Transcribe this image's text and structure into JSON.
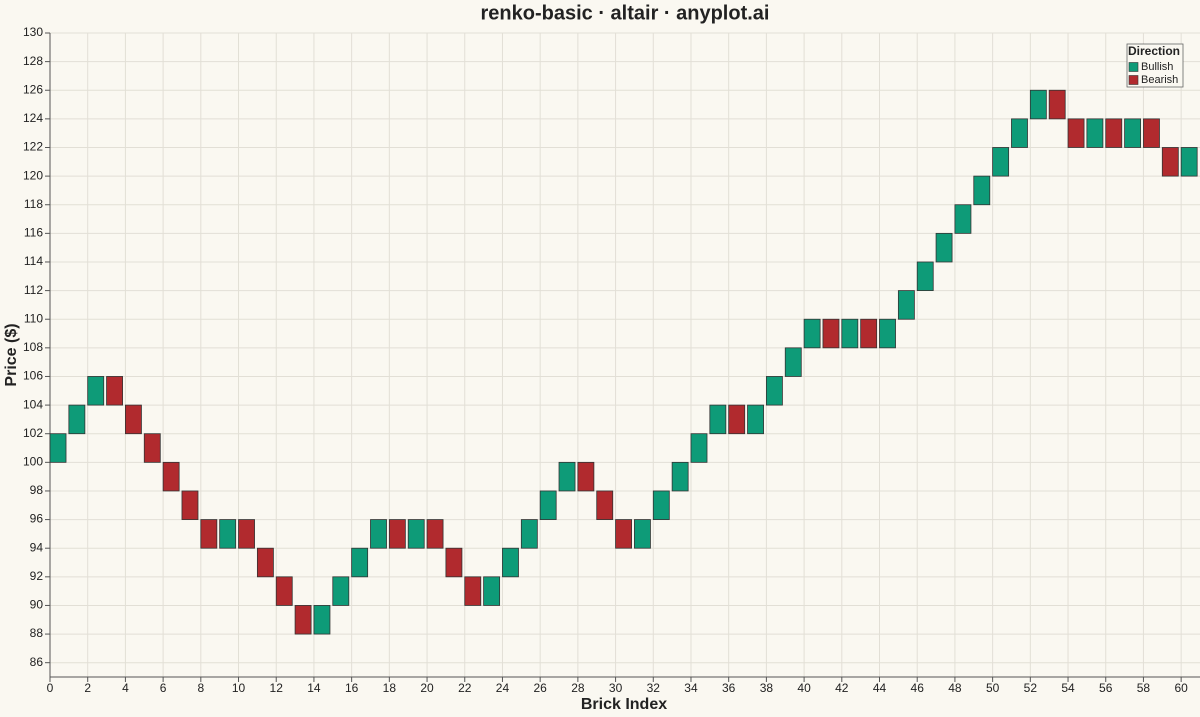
{
  "chart_data": {
    "type": "renko",
    "title": "renko-basic · altair · anyplot.ai",
    "x_label": "Brick Index",
    "y_label": "Price ($)",
    "xlim": [
      0,
      61
    ],
    "ylim": [
      85,
      130
    ],
    "xticks": [
      0,
      2,
      4,
      6,
      8,
      10,
      12,
      14,
      16,
      18,
      20,
      22,
      24,
      26,
      28,
      30,
      32,
      34,
      36,
      38,
      40,
      42,
      44,
      46,
      48,
      50,
      52,
      54,
      56,
      58,
      60
    ],
    "yticks": [
      86,
      88,
      90,
      92,
      94,
      96,
      98,
      100,
      102,
      104,
      106,
      108,
      110,
      112,
      114,
      116,
      118,
      120,
      122,
      124,
      126,
      128,
      130
    ],
    "grid": true,
    "legend_title": "Direction",
    "legend_position": "top-right",
    "series": [
      {
        "name": "Bullish",
        "color": "#0e9b78",
        "x": [
          0,
          1,
          2,
          9,
          14,
          15,
          16,
          17,
          19,
          23,
          24,
          25,
          26,
          27,
          31,
          32,
          33,
          34,
          35,
          37,
          38,
          39,
          40,
          42,
          44,
          45,
          46,
          47,
          48,
          49,
          50,
          51,
          52,
          55,
          57,
          60
        ],
        "low": [
          100,
          102,
          104,
          94,
          88,
          90,
          92,
          94,
          94,
          90,
          92,
          94,
          96,
          98,
          94,
          96,
          98,
          100,
          102,
          102,
          104,
          106,
          108,
          108,
          108,
          110,
          112,
          114,
          116,
          118,
          120,
          122,
          124,
          122,
          122,
          120
        ],
        "high": [
          102,
          104,
          106,
          96,
          90,
          92,
          94,
          96,
          96,
          92,
          94,
          96,
          98,
          100,
          96,
          98,
          100,
          102,
          104,
          104,
          106,
          108,
          110,
          110,
          110,
          112,
          114,
          116,
          118,
          120,
          122,
          124,
          126,
          124,
          124,
          122
        ]
      },
      {
        "name": "Bearish",
        "color": "#b12a2e",
        "x": [
          3,
          4,
          5,
          6,
          7,
          8,
          10,
          11,
          12,
          13,
          18,
          20,
          21,
          22,
          28,
          29,
          30,
          36,
          41,
          43,
          53,
          54,
          56,
          58,
          59
        ],
        "low": [
          104,
          102,
          100,
          98,
          96,
          94,
          94,
          92,
          90,
          88,
          94,
          94,
          92,
          90,
          98,
          96,
          94,
          102,
          108,
          108,
          124,
          122,
          122,
          122,
          120
        ],
        "high": [
          106,
          104,
          102,
          100,
          98,
          96,
          96,
          94,
          92,
          90,
          96,
          96,
          94,
          92,
          100,
          98,
          96,
          104,
          110,
          110,
          126,
          124,
          124,
          124,
          122
        ]
      }
    ]
  }
}
